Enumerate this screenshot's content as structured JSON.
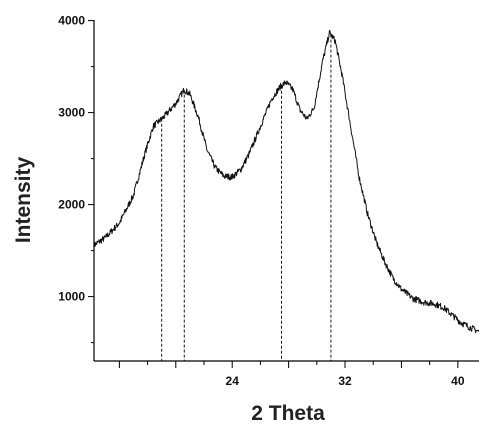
{
  "chart_data": {
    "type": "line",
    "title": "",
    "xlabel": "2 Theta",
    "ylabel": "Intensity",
    "xlim": [
      14.2,
      41.5
    ],
    "ylim": [
      300,
      4050
    ],
    "x_ticks": [
      24,
      32,
      40
    ],
    "y_ticks": [
      1000,
      2000,
      3000,
      4000
    ],
    "grid": false,
    "legend": "none",
    "series": [
      {
        "color": "#111111",
        "points": [
          [
            14.2,
            1560
          ],
          [
            15.0,
            1640
          ],
          [
            16.0,
            1800
          ],
          [
            17.0,
            2100
          ],
          [
            17.8,
            2550
          ],
          [
            18.4,
            2850
          ],
          [
            19.2,
            2960
          ],
          [
            20.0,
            3100
          ],
          [
            20.6,
            3250
          ],
          [
            21.0,
            3200
          ],
          [
            21.6,
            2950
          ],
          [
            22.2,
            2600
          ],
          [
            22.8,
            2400
          ],
          [
            23.4,
            2310
          ],
          [
            24.0,
            2300
          ],
          [
            24.6,
            2380
          ],
          [
            25.2,
            2550
          ],
          [
            26.0,
            2850
          ],
          [
            26.8,
            3150
          ],
          [
            27.4,
            3280
          ],
          [
            27.8,
            3330
          ],
          [
            28.3,
            3250
          ],
          [
            28.8,
            3030
          ],
          [
            29.3,
            2930
          ],
          [
            29.8,
            3050
          ],
          [
            30.4,
            3550
          ],
          [
            30.9,
            3870
          ],
          [
            31.3,
            3780
          ],
          [
            31.8,
            3400
          ],
          [
            32.4,
            2850
          ],
          [
            33.0,
            2300
          ],
          [
            33.6,
            1900
          ],
          [
            34.2,
            1600
          ],
          [
            34.8,
            1380
          ],
          [
            35.4,
            1200
          ],
          [
            36.0,
            1080
          ],
          [
            36.8,
            980
          ],
          [
            37.6,
            940
          ],
          [
            38.4,
            920
          ],
          [
            39.0,
            880
          ],
          [
            39.6,
            800
          ],
          [
            40.2,
            720
          ],
          [
            40.8,
            670
          ],
          [
            41.5,
            620
          ]
        ]
      }
    ],
    "peak_markers": [
      19.0,
      20.6,
      27.5,
      31.0
    ]
  }
}
